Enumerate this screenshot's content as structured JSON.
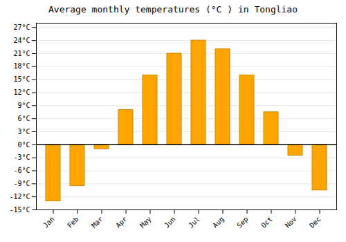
{
  "chart_data": {
    "type": "bar",
    "title": "Average monthly temperatures (°C ) in Tongliao",
    "categories": [
      "Jan",
      "Feb",
      "Mar",
      "Apr",
      "May",
      "Jun",
      "Jul",
      "Aug",
      "Sep",
      "Oct",
      "Nov",
      "Dec"
    ],
    "values": [
      -13,
      -9.5,
      -1,
      8,
      16,
      21,
      24,
      22,
      16,
      7.5,
      -2.5,
      -10.5
    ],
    "color": "#FFA500",
    "ylim": [
      -15,
      28
    ],
    "yticks": [
      {
        "value": -15,
        "label": "-15°C"
      },
      {
        "value": -12,
        "label": "-12°C"
      },
      {
        "value": -9,
        "label": "-9°C"
      },
      {
        "value": -6,
        "label": "-6°C"
      },
      {
        "value": -3,
        "label": "-3°C"
      },
      {
        "value": 0,
        "label": "0°C"
      },
      {
        "value": 3,
        "label": "3°C"
      },
      {
        "value": 6,
        "label": "6°C"
      },
      {
        "value": 9,
        "label": "9°C"
      },
      {
        "value": 12,
        "label": "12°C"
      },
      {
        "value": 15,
        "label": "15°C"
      },
      {
        "value": 18,
        "label": "18°C"
      },
      {
        "value": 21,
        "label": "21°C"
      },
      {
        "value": 24,
        "label": "24°C"
      },
      {
        "value": 27,
        "label": "27°C"
      }
    ],
    "grid": true
  }
}
